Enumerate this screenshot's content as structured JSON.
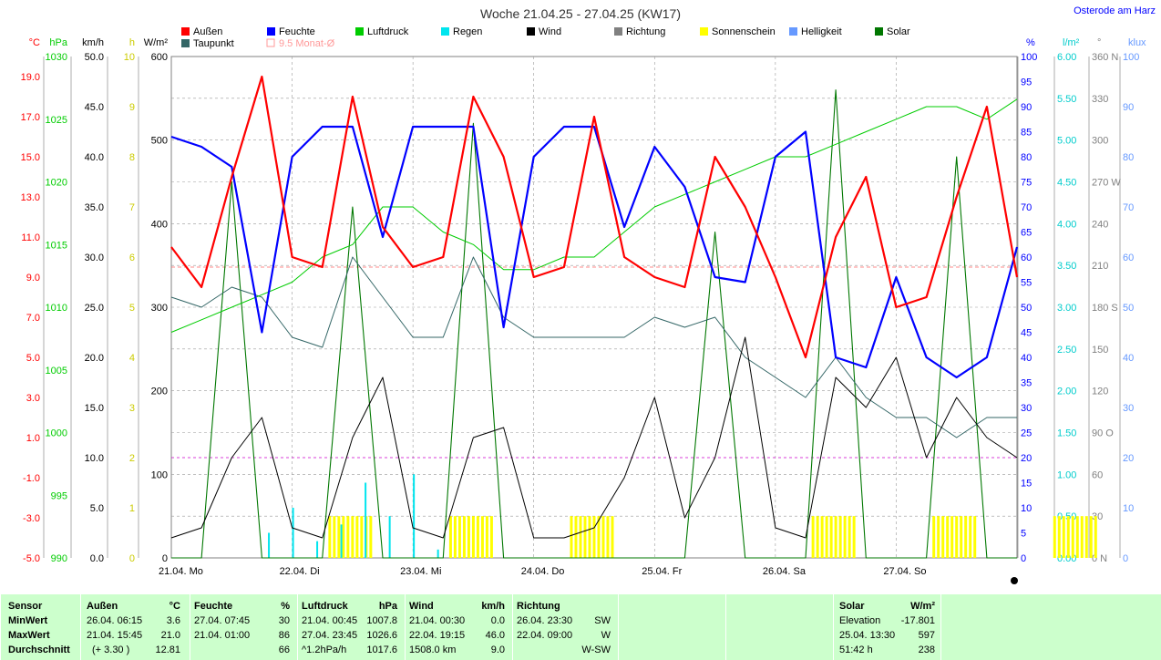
{
  "title": "Woche 21.04.25 - 27.04.25 (KW17)",
  "location": "Osterode am Harz",
  "legend": [
    {
      "label": "Außen",
      "color": "#ff0000"
    },
    {
      "label": "Feuchte",
      "color": "#0000ff"
    },
    {
      "label": "Luftdruck",
      "color": "#00cc00"
    },
    {
      "label": "Regen",
      "color": "#00e5ee"
    },
    {
      "label": "Wind",
      "color": "#000000"
    },
    {
      "label": "Richtung",
      "color": "#808080"
    },
    {
      "label": "Sonnenschein",
      "color": "#ffff00"
    },
    {
      "label": "Helligkeit",
      "color": "#6699ff"
    },
    {
      "label": "Solar",
      "color": "#007700"
    },
    {
      "label": "Taupunkt",
      "color": "#336666"
    },
    {
      "label": "9.5 Monat-Ø",
      "color": "#ff9999"
    }
  ],
  "axes_left": [
    {
      "unit": "°C",
      "color": "#ff0000",
      "ticks": [
        "19.0",
        "17.0",
        "15.0",
        "13.0",
        "11.0",
        "9.0",
        "7.0",
        "5.0",
        "3.0",
        "1.0",
        "-1.0",
        "-3.0",
        "-5.0"
      ]
    },
    {
      "unit": "hPa",
      "color": "#00cc00",
      "ticks": [
        "1030",
        "1025",
        "1020",
        "1015",
        "1010",
        "1005",
        "1000",
        "995",
        "990"
      ]
    },
    {
      "unit": "km/h",
      "color": "#000000",
      "ticks": [
        "50.0",
        "45.0",
        "40.0",
        "35.0",
        "30.0",
        "25.0",
        "20.0",
        "15.0",
        "10.0",
        "5.0",
        "0.0"
      ]
    },
    {
      "unit": "h",
      "color": "#cccc00",
      "ticks": [
        "10",
        "9",
        "8",
        "7",
        "6",
        "5",
        "4",
        "3",
        "2",
        "1",
        "0"
      ]
    },
    {
      "unit": "W/m²",
      "color": "#000000",
      "ticks": [
        "600",
        "500",
        "400",
        "300",
        "200",
        "100",
        "0"
      ]
    }
  ],
  "axes_right": [
    {
      "unit": "%",
      "color": "#0000ff",
      "ticks": [
        "100",
        "95",
        "90",
        "85",
        "80",
        "75",
        "70",
        "65",
        "60",
        "55",
        "50",
        "45",
        "40",
        "35",
        "30",
        "25",
        "20",
        "15",
        "10",
        "5",
        "0"
      ]
    },
    {
      "unit": "l/m²",
      "color": "#00cccc",
      "ticks": [
        "6.00",
        "5.50",
        "5.00",
        "4.50",
        "4.00",
        "3.50",
        "3.00",
        "2.50",
        "2.00",
        "1.50",
        "1.00",
        "0.50",
        "0.00"
      ]
    },
    {
      "unit": "°",
      "color": "#808080",
      "ticks": [
        "360 N",
        "330",
        "300",
        "270 W",
        "240",
        "210",
        "180 S",
        "150",
        "120",
        "90 O",
        "60",
        "30",
        "0 N"
      ]
    },
    {
      "unit": "klux",
      "color": "#6699ff",
      "ticks": [
        "100",
        "90",
        "80",
        "70",
        "60",
        "50",
        "40",
        "30",
        "20",
        "10",
        "0"
      ]
    }
  ],
  "day_labels": [
    "21.04. Mo",
    "22.04. Di",
    "23.04. Mi",
    "24.04. Do",
    "25.04. Fr",
    "26.04. Sa",
    "27.04. So"
  ],
  "chart_data": {
    "type": "line",
    "title": "Woche 21.04.25 - 27.04.25 (KW17)",
    "x_unit": "day index (0 = 21.04. 00:00)",
    "x": [
      0,
      0.25,
      0.5,
      0.75,
      1,
      1.25,
      1.5,
      1.75,
      2,
      2.25,
      2.5,
      2.75,
      3,
      3.25,
      3.5,
      3.75,
      4,
      4.25,
      4.5,
      4.75,
      5,
      5.25,
      5.5,
      5.75,
      6,
      6.25,
      6.5,
      6.75,
      7
    ],
    "series": [
      {
        "name": "Außen",
        "unit": "°C",
        "values": [
          10.5,
          8.5,
          14,
          19,
          10,
          9.5,
          18,
          11.5,
          9.5,
          10,
          18,
          15,
          9,
          9.5,
          17,
          10,
          9,
          8.5,
          15,
          12.5,
          9,
          5,
          11,
          14,
          7.5,
          8,
          13,
          17.5,
          9
        ]
      },
      {
        "name": "Feuchte",
        "unit": "%",
        "values": [
          84,
          82,
          78,
          45,
          80,
          86,
          86,
          64,
          86,
          86,
          86,
          46,
          80,
          86,
          86,
          66,
          82,
          74,
          56,
          55,
          80,
          85,
          40,
          38,
          56,
          40,
          36,
          40,
          62
        ]
      },
      {
        "name": "Luftdruck",
        "unit": "hPa",
        "values": [
          1008,
          1009,
          1010,
          1011,
          1012,
          1014,
          1015,
          1018,
          1018,
          1016,
          1015,
          1013,
          1013,
          1014,
          1014,
          1016,
          1018,
          1019,
          1020,
          1021,
          1022,
          1022,
          1023,
          1024,
          1025,
          1026,
          1026,
          1025,
          1026.6
        ]
      },
      {
        "name": "Wind",
        "unit": "km/h",
        "values": [
          2,
          3,
          10,
          14,
          3,
          2,
          12,
          18,
          3,
          2,
          12,
          13,
          2,
          2,
          3,
          8,
          16,
          4,
          10,
          22,
          3,
          2,
          18,
          15,
          20,
          10,
          16,
          12,
          10
        ]
      },
      {
        "name": "Solar",
        "unit": "W/m²",
        "values": [
          0,
          0,
          450,
          0,
          0,
          0,
          420,
          0,
          0,
          0,
          520,
          0,
          0,
          0,
          0,
          0,
          0,
          0,
          390,
          0,
          0,
          0,
          560,
          0,
          0,
          0,
          480,
          0,
          0
        ]
      },
      {
        "name": "Taupunkt",
        "unit": "°C",
        "values": [
          8,
          7.5,
          8.5,
          8,
          6,
          5.5,
          10,
          8,
          6,
          6,
          10,
          7,
          6,
          6,
          6,
          6,
          7,
          6.5,
          7,
          5,
          4,
          3,
          5,
          3,
          2,
          2,
          1,
          2,
          2
        ]
      }
    ],
    "rain_l_m2": [
      0.3,
      0.6,
      0.2,
      0.4,
      0.9,
      0.5,
      1.0,
      0.1
    ],
    "sunshine_days": [
      1,
      2,
      3,
      5,
      6,
      7
    ],
    "monthly_avg_temp": 9.5,
    "summary": {
      "headers": [
        [
          "Sensor",
          ""
        ],
        [
          "Außen",
          "°C"
        ],
        [
          "Feuchte",
          "%"
        ],
        [
          "Luftdruck",
          "hPa"
        ],
        [
          "Wind",
          "km/h"
        ],
        [
          "Richtung",
          ""
        ],
        [
          "Solar",
          "W/m²"
        ]
      ],
      "row_labels": [
        "MinWert",
        "MaxWert",
        "Durchschnitt"
      ],
      "aussen": [
        [
          "26.04.  06:15",
          "3.6"
        ],
        [
          "21.04.  15:45",
          "21.0"
        ],
        [
          "(+ 3.30 )",
          "12.81"
        ]
      ],
      "feuchte": [
        [
          "27.04.  07:45",
          "30"
        ],
        [
          "21.04.  01:00",
          "86"
        ],
        [
          "",
          "66"
        ]
      ],
      "luftdruck": [
        [
          "21.04.  00:45",
          "1007.8"
        ],
        [
          "27.04.  23:45",
          "1026.6"
        ],
        [
          "^1.2hPa/h",
          "1017.6"
        ]
      ],
      "wind": [
        [
          "21.04.  00:30",
          "0.0"
        ],
        [
          "22.04.  19:15",
          "46.0"
        ],
        [
          "1508.0 km",
          "9.0"
        ]
      ],
      "richtung": [
        [
          "26.04.  23:30",
          "SW"
        ],
        [
          "22.04.  09:00",
          "W"
        ],
        [
          "",
          "W-SW"
        ]
      ],
      "solar": [
        [
          "Elevation",
          "-17.801"
        ],
        [
          "25.04.  13:30",
          "597"
        ],
        [
          "51:42 h",
          "238"
        ]
      ]
    }
  }
}
